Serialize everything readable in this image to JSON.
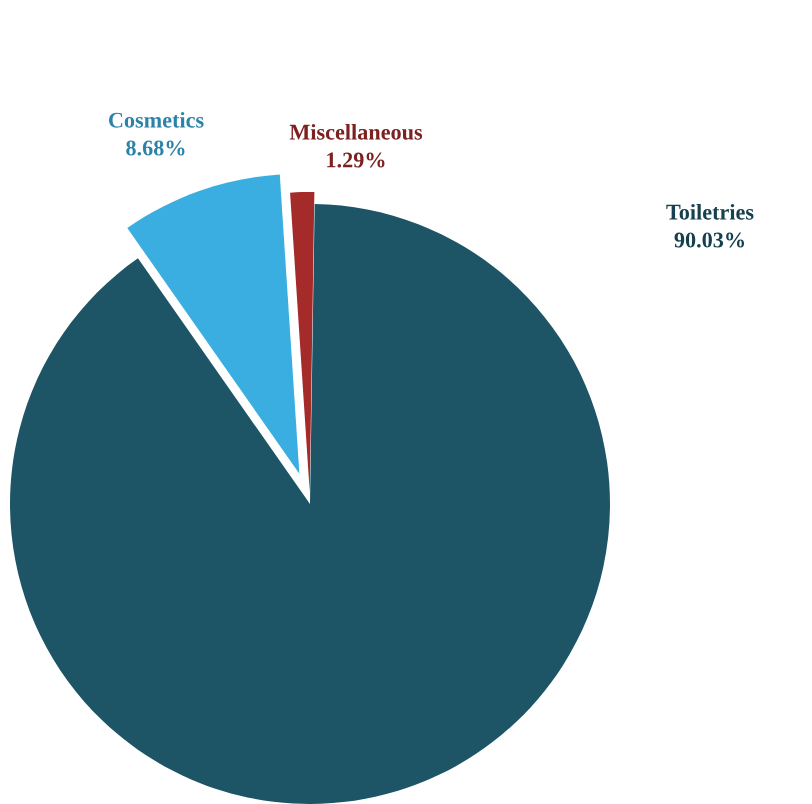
{
  "chart_data": {
    "type": "pie",
    "categories": [
      "Cosmetics",
      "Miscellaneous",
      "Toiletries"
    ],
    "values": [
      8.68,
      1.29,
      90.03
    ],
    "colors": [
      "#3aaee0",
      "#a52a2a",
      "#1d5566"
    ],
    "value_labels": [
      "8.68%",
      "1.29%",
      "90.03%"
    ],
    "legend": false
  }
}
